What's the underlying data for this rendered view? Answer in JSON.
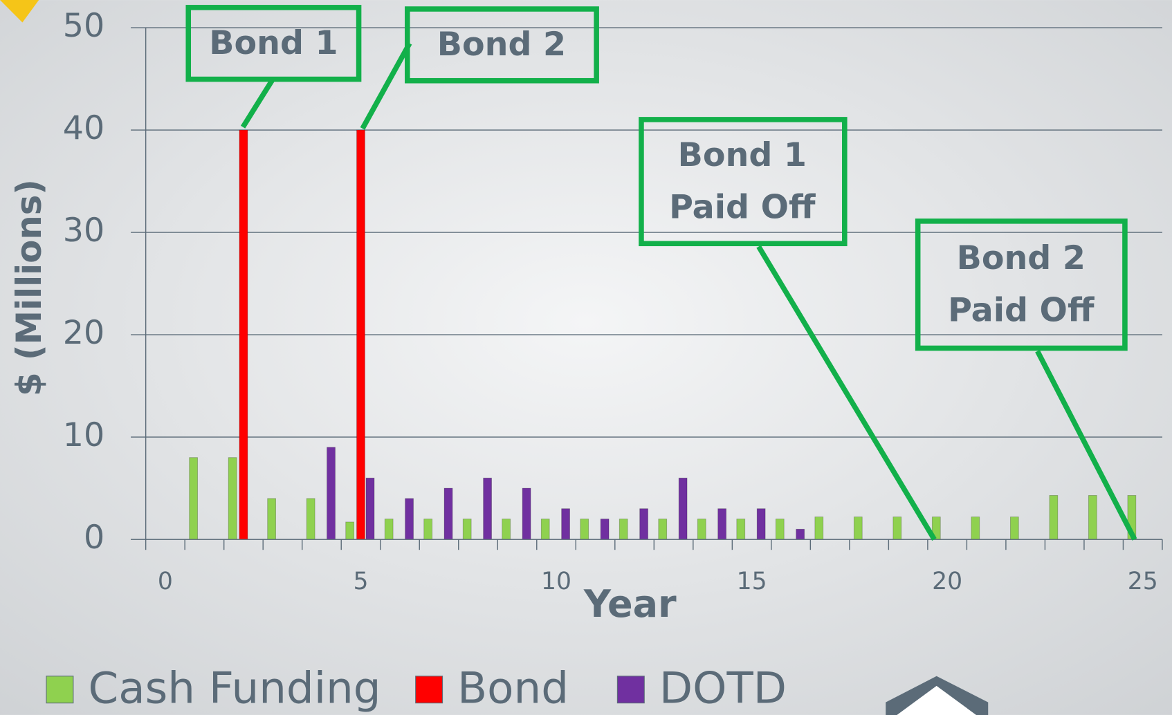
{
  "chart_data": {
    "type": "bar",
    "y_label": "$ (Millions)",
    "x_label": "Year",
    "categories": [
      "0",
      null,
      null,
      null,
      null,
      "5",
      null,
      null,
      null,
      null,
      "10",
      null,
      null,
      null,
      null,
      "15",
      null,
      null,
      null,
      null,
      "20",
      null,
      null,
      null,
      null,
      "25"
    ],
    "series": [
      {
        "name": "Cash Funding",
        "color": "#8fd14f",
        "values": [
          null,
          8,
          8,
          4,
          4,
          1.7,
          2,
          2,
          2,
          2,
          2,
          2,
          2,
          2,
          2,
          2,
          2,
          2.2,
          2.2,
          2.2,
          2.2,
          2.2,
          2.2,
          4.3,
          4.3,
          4.3
        ]
      },
      {
        "name": "Bond",
        "color": "#ff0000",
        "values": [
          null,
          null,
          40,
          null,
          null,
          40,
          null,
          null,
          null,
          null,
          null,
          null,
          null,
          null,
          null,
          null,
          null,
          null,
          null,
          null,
          null,
          null,
          null,
          null,
          null,
          null
        ]
      },
      {
        "name": "DOTD",
        "color": "#7030a0",
        "values": [
          null,
          null,
          null,
          null,
          9,
          6,
          4,
          5,
          6,
          5,
          3,
          2,
          3,
          6,
          3,
          3,
          1,
          null,
          null,
          null,
          null,
          null,
          null,
          null,
          null,
          null
        ]
      }
    ],
    "ylim": [
      0,
      50
    ],
    "yticks": [
      0,
      10,
      20,
      30,
      40,
      50
    ],
    "grid": true,
    "legend": "bottom",
    "annotations": [
      {
        "lines": [
          "Bond 1"
        ]
      },
      {
        "lines": [
          "Bond 2"
        ]
      },
      {
        "lines": [
          "Bond 1",
          "Paid Off"
        ]
      },
      {
        "lines": [
          "Bond 2",
          "Paid Off"
        ]
      }
    ]
  }
}
